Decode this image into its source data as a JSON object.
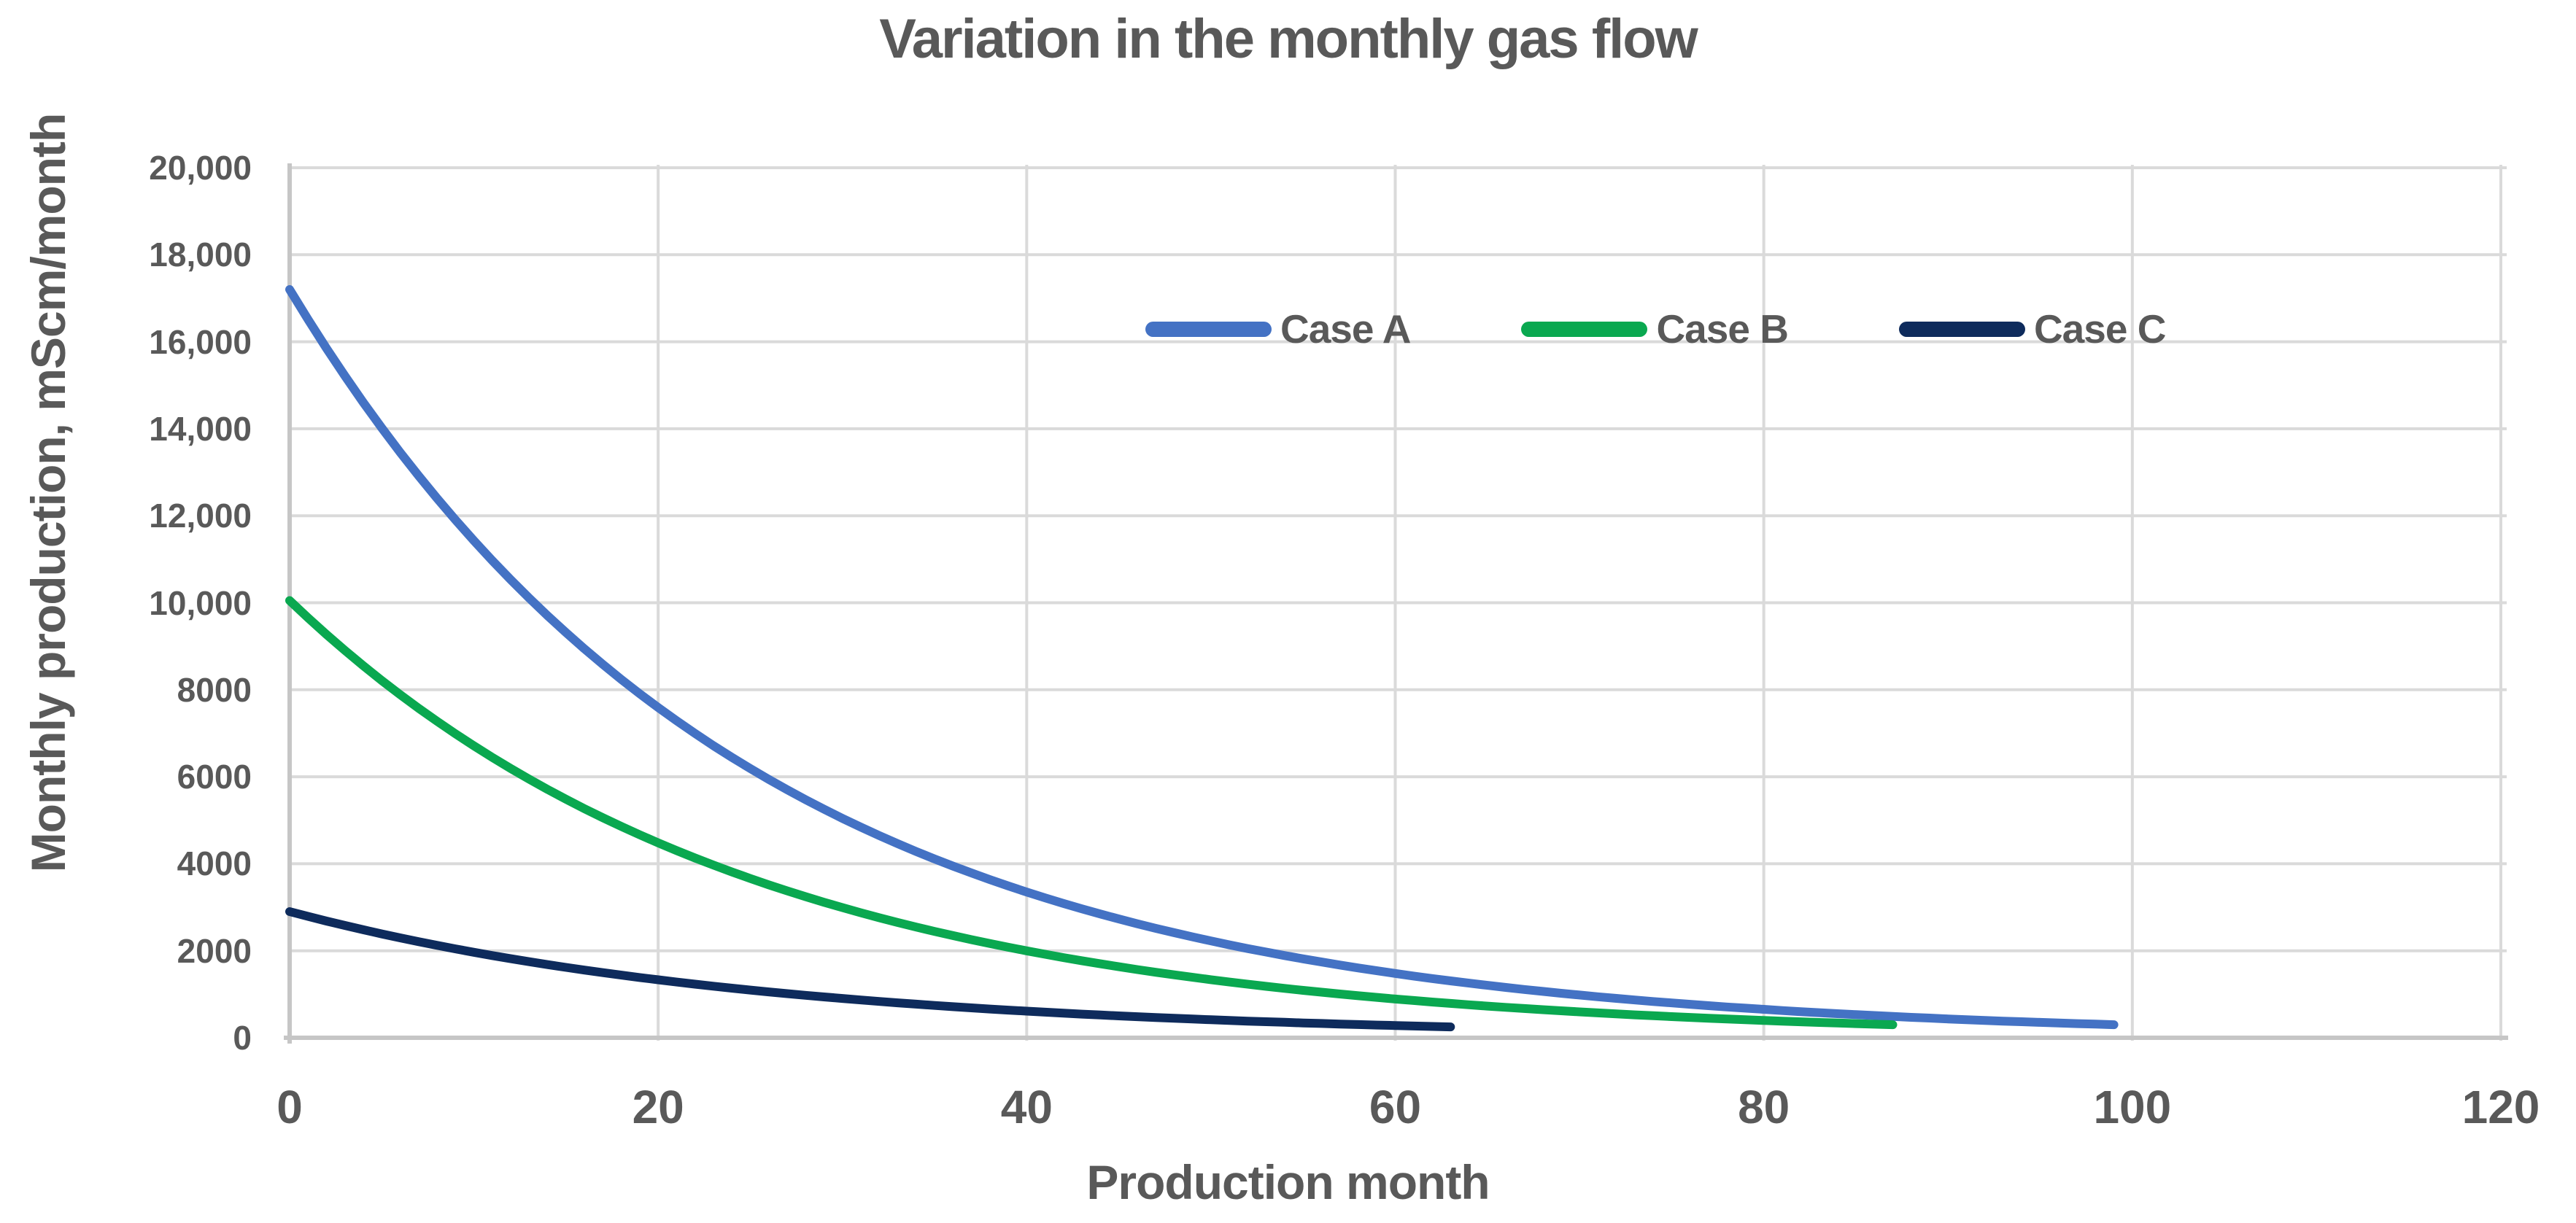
{
  "chart_data": {
    "type": "line",
    "title": "Variation in the monthly gas flow",
    "xlabel": "Production month",
    "ylabel": "Monthly production, mScm/month",
    "xlim": [
      0,
      120
    ],
    "ylim": [
      0,
      20000
    ],
    "grid": true,
    "legend_position": "inside-top-right",
    "x_ticks": [
      0,
      20,
      40,
      60,
      80,
      100,
      120
    ],
    "x_tick_labels": [
      "0",
      "20",
      "40",
      "60",
      "80",
      "100",
      "120"
    ],
    "y_ticks": [
      0,
      2000,
      4000,
      6000,
      8000,
      10000,
      12000,
      14000,
      16000,
      18000,
      20000
    ],
    "y_tick_labels": [
      "0",
      "2000",
      "4000",
      "6000",
      "8000",
      "10,000",
      "12,000",
      "14,000",
      "16,000",
      "18,000",
      "20,000"
    ],
    "colors": {
      "text": "#595959",
      "gridline": "#DADADA",
      "axis_line": "#C6C6C6",
      "case_a": "#4472C4",
      "case_b": "#0AA850",
      "case_c": "#0E2B5C"
    },
    "series": [
      {
        "name": "Case A",
        "color": "#4472C4",
        "x_start": 0,
        "x_step": 1,
        "values": [
          17200,
          16511,
          15849,
          15214,
          14604,
          14019,
          13457,
          12918,
          12400,
          11904,
          11427,
          10969,
          10529,
          10107,
          9702,
          9314,
          8940,
          8582,
          8238,
          7908,
          7591,
          7287,
          6995,
          6715,
          6446,
          6187,
          5939,
          5701,
          5473,
          5254,
          5043,
          4841,
          4647,
          4461,
          4282,
          4110,
          3946,
          3788,
          3636,
          3490,
          3350,
          3216,
          3087,
          2963,
          2845,
          2731,
          2621,
          2516,
          2415,
          2319,
          2226,
          2136,
          2051,
          1969,
          1890,
          1814,
          1741,
          1672,
          1605,
          1540,
          1479,
          1419,
          1362,
          1308,
          1255,
          1205,
          1157,
          1110,
          1066,
          1023,
          982,
          943,
          905,
          869,
          834,
          801,
          769,
          738,
          708,
          680,
          653,
          626,
          601,
          577,
          554,
          532,
          511,
          490,
          470,
          452,
          433,
          416,
          399,
          383,
          368,
          353,
          339,
          326,
          313,
          300
        ]
      },
      {
        "name": "Case B",
        "color": "#0AA850",
        "x_start": 0,
        "x_step": 1,
        "values": [
          10050,
          9652,
          9270,
          8903,
          8551,
          8212,
          7887,
          7575,
          7275,
          6987,
          6710,
          6445,
          6190,
          5945,
          5709,
          5483,
          5266,
          5058,
          4858,
          4665,
          4481,
          4303,
          4133,
          3969,
          3812,
          3661,
          3516,
          3377,
          3244,
          3115,
          2992,
          2873,
          2760,
          2650,
          2545,
          2445,
          2348,
          2255,
          2166,
          2080,
          1998,
          1919,
          1843,
          1770,
          1700,
          1633,
          1568,
          1506,
          1446,
          1389,
          1334,
          1281,
          1231,
          1182,
          1135,
          1090,
          1047,
          1006,
          966,
          928,
          891,
          856,
          822,
          789,
          758,
          728,
          699,
          672,
          645,
          620,
          595,
          572,
          549,
          527,
          506,
          486,
          467,
          449,
          431,
          414,
          397,
          382,
          367,
          352,
          338,
          325,
          312,
          300
        ]
      },
      {
        "name": "Case C",
        "color": "#0E2B5C",
        "x_start": 0,
        "x_step": 1,
        "values": [
          2900,
          2789,
          2683,
          2581,
          2482,
          2387,
          2296,
          2209,
          2124,
          2043,
          1965,
          1890,
          1818,
          1749,
          1682,
          1618,
          1556,
          1497,
          1440,
          1385,
          1332,
          1281,
          1232,
          1185,
          1140,
          1096,
          1055,
          1014,
          976,
          938,
          903,
          868,
          835,
          803,
          773,
          743,
          715,
          687,
          661,
          636,
          612,
          588,
          566,
          544,
          523,
          503,
          484,
          466,
          448,
          431,
          414,
          398,
          383,
          369,
          355,
          341,
          328,
          316,
          304,
          292,
          281,
          270,
          260,
          250
        ]
      }
    ]
  }
}
